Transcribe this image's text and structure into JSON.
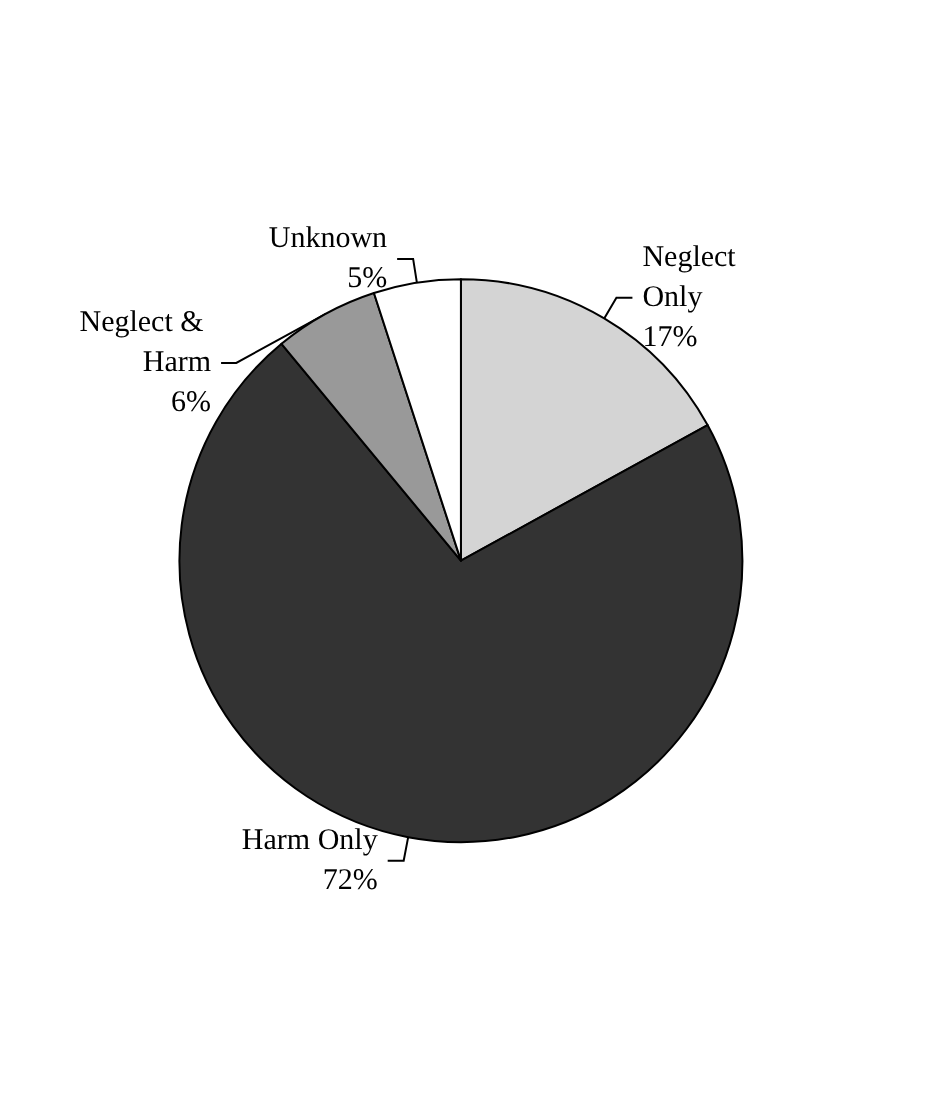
{
  "chart_data": {
    "type": "pie",
    "categories": [
      "Neglect Only",
      "Harm Only",
      "Neglect & Harm",
      "Unknown"
    ],
    "values": [
      17,
      72,
      6,
      5
    ],
    "value_labels": [
      "17%",
      "72%",
      "6%",
      "5%"
    ],
    "colors": [
      "#d4d4d4",
      "#333333",
      "#999999",
      "#ffffff"
    ],
    "legend": false
  }
}
